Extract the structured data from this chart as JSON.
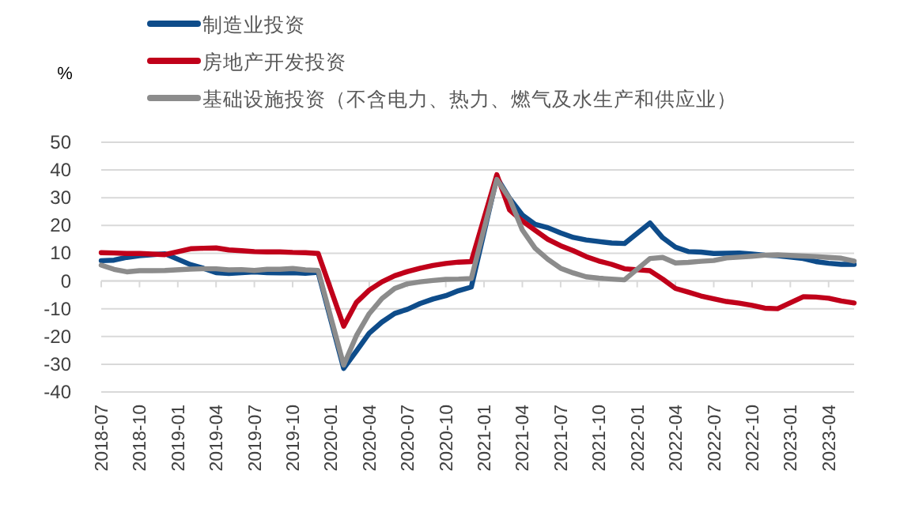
{
  "chart_data": {
    "type": "line",
    "ylabel": "%",
    "legend": "top",
    "grid": "y",
    "line_style": "solid",
    "marker": "none",
    "x": [
      "2018-07",
      "2018-08",
      "2018-09",
      "2018-10",
      "2018-11",
      "2018-12",
      "2019-02",
      "2019-03",
      "2019-04",
      "2019-05",
      "2019-06",
      "2019-07",
      "2019-08",
      "2019-09",
      "2019-10",
      "2019-11",
      "2019-12",
      "2020-02",
      "2020-03",
      "2020-04",
      "2020-05",
      "2020-06",
      "2020-07",
      "2020-08",
      "2020-09",
      "2020-10",
      "2020-11",
      "2020-12",
      "2021-02",
      "2021-03",
      "2021-04",
      "2021-05",
      "2021-06",
      "2021-07",
      "2021-08",
      "2021-09",
      "2021-10",
      "2021-11",
      "2021-12",
      "2022-02",
      "2022-03",
      "2022-04",
      "2022-05",
      "2022-06",
      "2022-07",
      "2022-08",
      "2022-09",
      "2022-10",
      "2022-11",
      "2022-12",
      "2023-02",
      "2023-03",
      "2023-04",
      "2023-05",
      "2023-06"
    ],
    "xlim": [
      "2018-07",
      "2023-06"
    ],
    "xticks": [
      "2018-07",
      "2018-10",
      "2019-01",
      "2019-04",
      "2019-07",
      "2019-10",
      "2020-01",
      "2020-04",
      "2020-07",
      "2020-10",
      "2021-01",
      "2021-04",
      "2021-07",
      "2021-10",
      "2022-01",
      "2022-04",
      "2022-07",
      "2022-10",
      "2023-01",
      "2023-04"
    ],
    "ylim": [
      -40,
      50
    ],
    "yticks": [
      -40,
      -30,
      -20,
      -10,
      0,
      10,
      20,
      30,
      40,
      50
    ],
    "series": [
      {
        "name": "制造业投资",
        "color": "#0e4c8a",
        "values": [
          7.3,
          7.5,
          8.5,
          9.1,
          9.5,
          9.8,
          5.9,
          4.6,
          3.0,
          2.7,
          3.0,
          3.3,
          3.0,
          2.9,
          3.0,
          2.8,
          3.1,
          -31.5,
          -25.2,
          -18.8,
          -14.8,
          -11.7,
          -10.2,
          -8.1,
          -6.5,
          -5.3,
          -3.5,
          -2.2,
          37.3,
          29.8,
          23.8,
          20.4,
          19.2,
          17.3,
          15.7,
          14.8,
          14.2,
          13.7,
          13.5,
          20.9,
          15.6,
          12.2,
          10.6,
          10.4,
          9.9,
          10.0,
          10.1,
          9.7,
          9.3,
          9.1,
          8.1,
          7.0,
          6.4,
          6.0,
          6.0
        ]
      },
      {
        "name": "房地产开发投资",
        "color": "#c0001a",
        "values": [
          10.2,
          10.1,
          9.9,
          9.9,
          9.7,
          9.5,
          11.6,
          11.8,
          11.9,
          11.2,
          10.9,
          10.6,
          10.5,
          10.5,
          10.3,
          10.2,
          9.9,
          -16.3,
          -7.7,
          -3.3,
          -0.3,
          1.9,
          3.4,
          4.6,
          5.6,
          6.3,
          6.8,
          7.0,
          38.3,
          25.6,
          21.6,
          18.3,
          15.0,
          12.7,
          10.9,
          8.8,
          7.2,
          6.0,
          4.4,
          3.7,
          0.7,
          -2.7,
          -4.0,
          -5.4,
          -6.4,
          -7.4,
          -8.0,
          -8.8,
          -9.8,
          -10.0,
          -5.7,
          -5.8,
          -6.2,
          -7.2,
          -7.9
        ]
      },
      {
        "name": "基础设施投资（不含电力、热力、燃气及水生产和供应业）",
        "color": "#8c8c8c",
        "values": [
          5.7,
          4.2,
          3.3,
          3.7,
          3.7,
          3.8,
          4.3,
          4.4,
          4.4,
          4.0,
          4.1,
          3.8,
          4.2,
          4.2,
          4.5,
          4.0,
          3.8,
          -30.3,
          -19.7,
          -11.8,
          -6.3,
          -2.7,
          -1.0,
          -0.3,
          0.2,
          0.6,
          0.7,
          0.9,
          36.6,
          29.7,
          18.4,
          11.8,
          7.8,
          4.6,
          2.9,
          1.5,
          1.0,
          0.7,
          0.4,
          8.1,
          8.5,
          6.5,
          6.7,
          7.1,
          7.4,
          8.3,
          8.6,
          8.9,
          9.3,
          9.4,
          9.0,
          8.8,
          8.5,
          8.2,
          7.2
        ]
      }
    ]
  }
}
